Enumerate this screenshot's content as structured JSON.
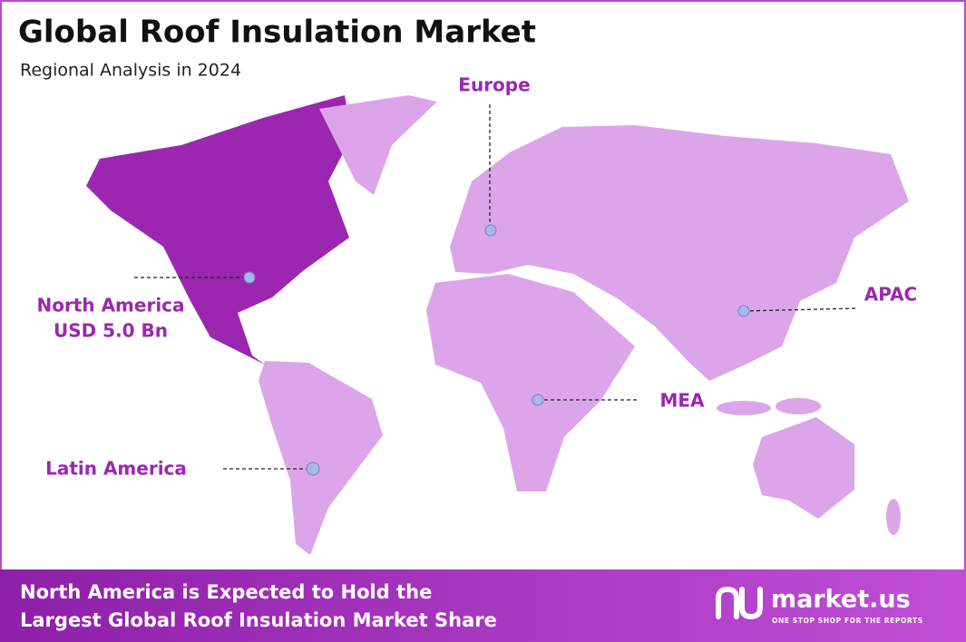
{
  "header": {
    "title": "Global Roof Insulation Market",
    "subtitle": "Regional Analysis in 2024"
  },
  "regions": [
    {
      "label": "Europe"
    },
    {
      "label": "North America",
      "value": "USD 5.0 Bn"
    },
    {
      "label": "APAC"
    },
    {
      "label": "MEA"
    },
    {
      "label": "Latin America"
    }
  ],
  "footer": {
    "lines": [
      "North America is Expected to Hold the",
      "Largest Global Roof Insulation Market Share"
    ]
  },
  "brand": {
    "name": "market.us",
    "tagline": "ONE STOP SHOP FOR THE REPORTS"
  }
}
